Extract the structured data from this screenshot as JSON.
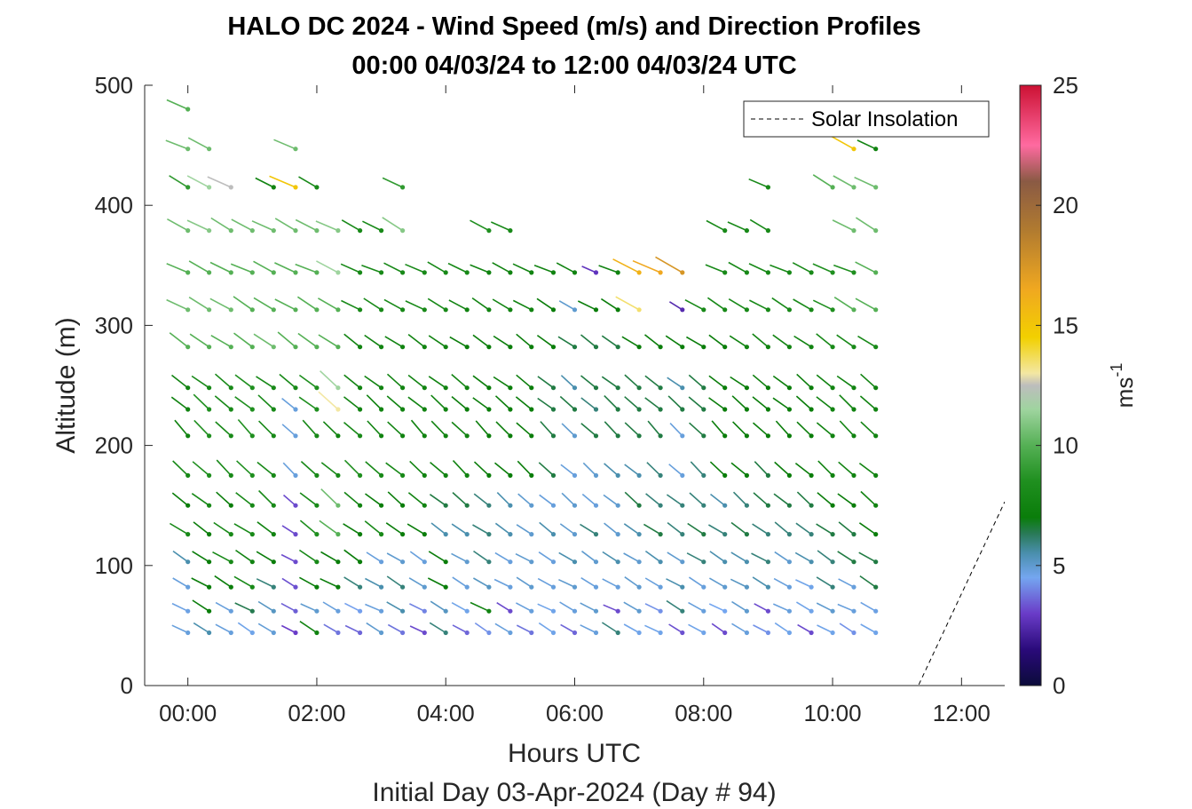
{
  "chart_data": {
    "type": "wind-barb-profile",
    "title": "HALO DC 2024 - Wind Speed (m/s) and Direction Profiles",
    "subtitle": "00:00 04/03/24 to 12:00 04/03/24  UTC",
    "xlabel": "Hours UTC",
    "xlabel2": "Initial Day 03-Apr-2024 (Day # 94)",
    "ylabel": "Altitude (m)",
    "xlim": [
      -0.67,
      12.67
    ],
    "ylim": [
      0,
      500
    ],
    "x_ticks": [
      0,
      2,
      4,
      6,
      8,
      10,
      12
    ],
    "x_tick_labels": [
      "00:00",
      "02:00",
      "04:00",
      "06:00",
      "08:00",
      "10:00",
      "12:00"
    ],
    "y_ticks": [
      0,
      100,
      200,
      300,
      400,
      500
    ],
    "y_tick_labels": [
      "0",
      "100",
      "200",
      "300",
      "400",
      "500"
    ],
    "colorbar": {
      "range": [
        0,
        25
      ],
      "ticks": [
        0,
        5,
        10,
        15,
        20,
        25
      ],
      "tick_labels": [
        "0",
        "5",
        "10",
        "15",
        "20",
        "25"
      ],
      "unit_label": "ms",
      "unit_exponent": "-1",
      "stops": [
        {
          "v": 0,
          "c": "#0b0b3a"
        },
        {
          "v": 1.5,
          "c": "#2a0a7a"
        },
        {
          "v": 3,
          "c": "#6a3cc8"
        },
        {
          "v": 4.5,
          "c": "#74a6f0"
        },
        {
          "v": 5.5,
          "c": "#4a8fae"
        },
        {
          "v": 6.3,
          "c": "#2a7a5a"
        },
        {
          "v": 7,
          "c": "#0a7d0a"
        },
        {
          "v": 8.5,
          "c": "#1f8f1f"
        },
        {
          "v": 10,
          "c": "#55b055"
        },
        {
          "v": 11.5,
          "c": "#9fd49f"
        },
        {
          "v": 12.5,
          "c": "#bdbdbd"
        },
        {
          "v": 13,
          "c": "#f3e7a3"
        },
        {
          "v": 14.5,
          "c": "#f2d000"
        },
        {
          "v": 16.5,
          "c": "#f0a820"
        },
        {
          "v": 19,
          "c": "#b07a30"
        },
        {
          "v": 21,
          "c": "#8a5a44"
        },
        {
          "v": 22.5,
          "c": "#ff6aa0"
        },
        {
          "v": 25,
          "c": "#cc1133"
        }
      ]
    },
    "legend": {
      "label": "Solar Insolation",
      "position": "top-right",
      "style": "dashed"
    },
    "solar_insolation": {
      "x": [
        -0.67,
        11.33,
        12.67
      ],
      "y": [
        0,
        0,
        153
      ]
    },
    "altitudes": [
      44,
      62,
      82,
      103,
      126,
      150,
      175,
      208,
      230,
      248,
      282,
      313,
      344,
      379,
      415,
      447,
      480
    ],
    "times": [
      0,
      0.33,
      0.67,
      1,
      1.33,
      1.67,
      2,
      2.33,
      2.67,
      3,
      3.33,
      3.67,
      4,
      4.33,
      4.67,
      5,
      5.33,
      5.67,
      6,
      6.33,
      6.67,
      7,
      7.33,
      7.67,
      8,
      8.33,
      8.67,
      9,
      9.33,
      9.67,
      10,
      10.33,
      10.67
    ],
    "notes": "Wind vectors: each row gives speed (m/s) per time step; null = no data. Direction is encoded as the angle of the drawn tail.",
    "rows": [
      {
        "alt": 44,
        "speed": [
          4.8,
          5.5,
          4.8,
          4.6,
          4.9,
          3.0,
          7.5,
          3.8,
          3.6,
          5.0,
          3.8,
          3.2,
          6.0,
          3.6,
          4.2,
          4.8,
          3.8,
          4.6,
          3.6,
          4.8,
          6.0,
          4.6,
          4.6,
          3.3,
          4.6,
          3.2,
          4.8,
          4.2,
          4.6,
          3.2,
          4.6,
          4.2,
          4.6
        ]
      },
      {
        "alt": 62,
        "speed": [
          4.7,
          7.0,
          4.8,
          6.4,
          5.2,
          3.5,
          5.0,
          4.8,
          4.4,
          4.8,
          5.5,
          4.0,
          5.2,
          4.6,
          7.5,
          3.2,
          4.8,
          4.6,
          4.8,
          5.0,
          3.2,
          5.0,
          4.2,
          6.0,
          4.8,
          4.5,
          5.0,
          3.2,
          4.8,
          4.6,
          5.0,
          4.8,
          4.7
        ]
      },
      {
        "alt": 82,
        "speed": [
          4.8,
          7.0,
          7.0,
          8.0,
          6.0,
          3.3,
          7.0,
          7.0,
          6.0,
          5.5,
          6.0,
          5.0,
          7.0,
          4.8,
          5.2,
          4.8,
          5.0,
          4.8,
          5.0,
          4.8,
          4.8,
          5.0,
          4.8,
          5.5,
          4.8,
          5.0,
          5.2,
          5.5,
          4.8,
          4.6,
          6.0,
          4.8,
          6.5
        ]
      },
      {
        "alt": 103,
        "speed": [
          5.5,
          7.0,
          8.0,
          7.5,
          7.0,
          3.2,
          8.0,
          7.0,
          7.0,
          4.8,
          5.0,
          4.8,
          7.0,
          5.0,
          6.0,
          4.8,
          5.0,
          4.8,
          5.5,
          5.0,
          5.5,
          5.0,
          5.5,
          5.0,
          6.0,
          5.5,
          5.5,
          6.0,
          5.0,
          5.5,
          6.0,
          6.5,
          6.5
        ]
      },
      {
        "alt": 126,
        "speed": [
          8.0,
          7.0,
          8.0,
          8.0,
          7.5,
          3.2,
          8.5,
          10.0,
          7.0,
          8.0,
          7.0,
          7.0,
          5.5,
          5.5,
          6.0,
          5.5,
          5.0,
          5.5,
          5.0,
          6.0,
          5.0,
          5.5,
          6.5,
          6.0,
          6.5,
          6.0,
          6.5,
          6.0,
          6.0,
          6.0,
          6.5,
          6.5,
          7.0
        ]
      },
      {
        "alt": 150,
        "speed": [
          7.0,
          8.0,
          7.0,
          8.0,
          8.0,
          3.2,
          8.0,
          10.5,
          7.5,
          7.0,
          7.0,
          7.5,
          6.5,
          6.5,
          6.0,
          5.5,
          5.0,
          4.8,
          5.0,
          4.8,
          5.0,
          6.5,
          6.0,
          6.0,
          6.0,
          5.5,
          6.0,
          6.5,
          6.5,
          6.5,
          7.0,
          7.0,
          7.5
        ]
      },
      {
        "alt": 175,
        "speed": [
          8.0,
          8.5,
          8.0,
          8.5,
          8.0,
          4.8,
          8.0,
          8.0,
          8.5,
          8.0,
          8.0,
          7.5,
          7.5,
          7.5,
          7.0,
          7.0,
          7.0,
          6.5,
          4.8,
          5.0,
          5.5,
          5.5,
          6.0,
          4.8,
          6.0,
          7.0,
          7.0,
          6.5,
          7.0,
          7.0,
          7.5,
          7.5,
          7.5
        ]
      },
      {
        "alt": 208,
        "speed": [
          7.5,
          8.5,
          8.0,
          8.5,
          8.0,
          4.8,
          8.0,
          7.5,
          8.0,
          7.5,
          7.5,
          7.5,
          7.5,
          7.5,
          7.0,
          7.0,
          7.0,
          6.5,
          5.0,
          6.5,
          6.5,
          6.5,
          6.5,
          4.8,
          6.5,
          7.0,
          7.0,
          7.0,
          7.0,
          7.0,
          7.5,
          7.5,
          7.5
        ]
      },
      {
        "alt": 230,
        "speed": [
          7.5,
          8.5,
          8.0,
          8.5,
          8.0,
          4.8,
          8.5,
          13.0,
          7.5,
          7.5,
          7.5,
          7.5,
          7.5,
          7.0,
          7.0,
          7.0,
          7.0,
          6.5,
          6.5,
          6.0,
          6.5,
          6.5,
          6.5,
          6.5,
          6.5,
          7.0,
          7.0,
          7.0,
          7.0,
          7.0,
          7.5,
          7.5,
          7.5
        ]
      },
      {
        "alt": 248,
        "speed": [
          7.5,
          8.0,
          8.0,
          8.5,
          8.0,
          8.0,
          8.5,
          11.5,
          7.5,
          7.5,
          7.5,
          7.5,
          7.5,
          7.5,
          7.0,
          7.0,
          7.0,
          6.5,
          5.5,
          6.5,
          6.5,
          6.5,
          6.5,
          5.5,
          6.5,
          7.0,
          7.0,
          7.0,
          7.0,
          7.0,
          7.5,
          7.5,
          7.5
        ]
      },
      {
        "alt": 282,
        "speed": [
          10.0,
          10.0,
          10.0,
          10.0,
          10.5,
          10.0,
          10.0,
          10.0,
          7.5,
          7.5,
          7.5,
          7.5,
          7.5,
          7.0,
          7.0,
          7.0,
          7.0,
          7.0,
          6.5,
          6.5,
          6.5,
          7.0,
          7.0,
          7.0,
          7.0,
          7.0,
          7.5,
          7.5,
          7.5,
          7.5,
          8.0,
          8.0,
          8.0
        ]
      },
      {
        "alt": 313,
        "speed": [
          10.5,
          10.5,
          10.5,
          10.0,
          10.0,
          10.0,
          10.0,
          10.0,
          8.0,
          8.0,
          8.0,
          8.0,
          8.0,
          7.5,
          7.5,
          7.5,
          7.5,
          7.0,
          5.0,
          7.0,
          7.0,
          13.5,
          null,
          2.5,
          8.0,
          8.0,
          8.0,
          8.0,
          8.0,
          8.0,
          8.5,
          10.0,
          10.0
        ]
      },
      {
        "alt": 344,
        "speed": [
          10.0,
          10.0,
          10.0,
          10.0,
          10.0,
          10.0,
          10.0,
          11.5,
          8.0,
          8.0,
          8.0,
          8.0,
          8.0,
          8.0,
          7.5,
          7.5,
          7.5,
          7.5,
          7.5,
          2.8,
          7.5,
          16.0,
          16.5,
          17.5,
          null,
          8.0,
          8.0,
          8.0,
          8.0,
          8.0,
          8.5,
          8.5,
          10.0
        ]
      },
      {
        "alt": 379,
        "speed": [
          10.5,
          11.0,
          10.5,
          10.5,
          10.5,
          10.5,
          10.5,
          11.0,
          8.0,
          8.0,
          11.0,
          null,
          null,
          null,
          8.5,
          8.0,
          null,
          null,
          null,
          null,
          null,
          null,
          null,
          null,
          null,
          8.0,
          8.0,
          8.0,
          null,
          null,
          null,
          10.5,
          10.5
        ]
      },
      {
        "alt": 415,
        "speed": [
          9.0,
          11.5,
          12.5,
          null,
          7.5,
          15.0,
          8.0,
          null,
          null,
          null,
          9.0,
          null,
          null,
          null,
          null,
          null,
          null,
          null,
          null,
          null,
          null,
          null,
          null,
          null,
          null,
          null,
          null,
          8.0,
          null,
          null,
          10.0,
          10.5,
          10.5
        ]
      },
      {
        "alt": 447,
        "speed": [
          10.5,
          10.5,
          null,
          null,
          null,
          10.5,
          null,
          null,
          null,
          null,
          null,
          null,
          null,
          null,
          null,
          null,
          null,
          null,
          null,
          null,
          null,
          null,
          null,
          null,
          null,
          null,
          null,
          null,
          null,
          null,
          null,
          15.0,
          7.5
        ]
      },
      {
        "alt": 480,
        "speed": [
          10.0,
          null,
          null,
          null,
          null,
          null,
          null,
          null,
          null,
          null,
          null,
          null,
          null,
          null,
          null,
          null,
          null,
          null,
          null,
          null,
          null,
          null,
          null,
          null,
          null,
          null,
          null,
          null,
          null,
          null,
          null,
          null,
          null
        ]
      }
    ],
    "direction_deg": {
      "note": "Most vectors point from upper-left (tail) to lower-right (head); angle below the horizontal in degrees per altitude row",
      "rows": [
        30,
        28,
        30,
        32,
        35,
        40,
        42,
        45,
        40,
        38,
        35,
        30,
        25,
        28,
        28,
        25,
        25
      ]
    }
  }
}
